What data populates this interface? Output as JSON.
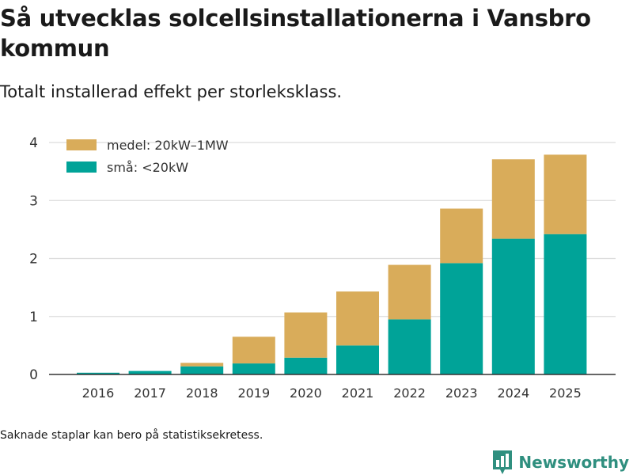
{
  "title": "Så utvecklas solcellsinstallationerna i Vansbro kommun",
  "subtitle": "Totalt installerad effekt per storleksklass.",
  "footnote": "Saknade staplar kan bero på statistiksekretess.",
  "brand": {
    "name": "Newsworthy",
    "icon": "newsworthy-logo-icon",
    "color": "#2f8f7f"
  },
  "chart_data": {
    "type": "bar",
    "stacked": true,
    "title": "Så utvecklas solcellsinstallationerna i Vansbro kommun",
    "subtitle": "Totalt installerad effekt per storleksklass.",
    "xlabel": "",
    "ylabel": "",
    "categories": [
      "2016",
      "2017",
      "2018",
      "2019",
      "2020",
      "2021",
      "2022",
      "2023",
      "2024",
      "2025"
    ],
    "series": [
      {
        "name": "små: <20kW",
        "color": "#00a398",
        "values": [
          0.03,
          0.06,
          0.14,
          0.19,
          0.29,
          0.5,
          0.95,
          1.92,
          2.34,
          2.42
        ]
      },
      {
        "name": "medel: 20kW–1MW",
        "color": "#d9ac5a",
        "values": [
          0.0,
          0.0,
          0.06,
          0.46,
          0.78,
          0.93,
          0.94,
          0.94,
          1.37,
          1.37
        ]
      }
    ],
    "ylim": [
      0,
      4
    ],
    "yticks": [
      0,
      1,
      2,
      3,
      4
    ],
    "grid": true,
    "legend": {
      "placement": "top-left",
      "order": [
        "medel: 20kW–1MW",
        "små: <20kW"
      ]
    }
  }
}
